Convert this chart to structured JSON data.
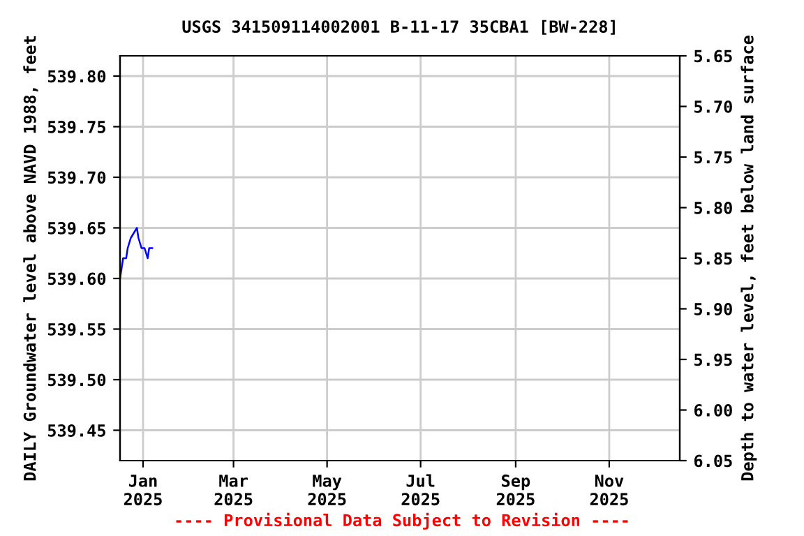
{
  "chart_data": {
    "type": "line",
    "title": "USGS 341509114002001 B-11-17 35CBA1 [BW-228]",
    "ylabel": "DAILY Groundwater level above NAVD 1988, feet",
    "y2label": "Depth to water level, feet below land surface",
    "annotations": [
      "---- Provisional Data Subject to Revision ----"
    ],
    "series": [
      {
        "color": "#0000ff",
        "x": [
          "2024-12-17",
          "2024-12-18",
          "2024-12-19",
          "2024-12-21",
          "2024-12-22",
          "2024-12-24",
          "2024-12-26",
          "2024-12-28",
          "2024-12-29",
          "2024-12-31",
          "2025-01-02",
          "2025-01-04",
          "2025-01-05",
          "2025-01-07"
        ],
        "values": [
          539.6,
          539.61,
          539.62,
          539.62,
          539.63,
          539.64,
          539.645,
          539.65,
          539.64,
          539.63,
          539.63,
          539.62,
          539.63,
          539.63
        ]
      }
    ],
    "xlim": [
      "2024-12-17",
      "2025-12-17"
    ],
    "xticks": [
      {
        "value": "2025-01-01",
        "label": "Jan\n2025"
      },
      {
        "value": "2025-03-01",
        "label": "Mar\n2025"
      },
      {
        "value": "2025-05-01",
        "label": "May\n2025"
      },
      {
        "value": "2025-07-01",
        "label": "Jul\n2025"
      },
      {
        "value": "2025-09-01",
        "label": "Sep\n2025"
      },
      {
        "value": "2025-11-01",
        "label": "Nov\n2025"
      }
    ],
    "ylim": [
      539.42,
      539.82
    ],
    "yticks": [
      {
        "value": 539.45,
        "label": "539.45"
      },
      {
        "value": 539.5,
        "label": "539.50"
      },
      {
        "value": 539.55,
        "label": "539.55"
      },
      {
        "value": 539.6,
        "label": "539.60"
      },
      {
        "value": 539.65,
        "label": "539.65"
      },
      {
        "value": 539.7,
        "label": "539.70"
      },
      {
        "value": 539.75,
        "label": "539.75"
      },
      {
        "value": 539.8,
        "label": "539.80"
      }
    ],
    "y2lim": [
      6.05,
      5.65
    ],
    "y2ticks": [
      {
        "value": 5.65,
        "label": "5.65"
      },
      {
        "value": 5.7,
        "label": "5.70"
      },
      {
        "value": 5.75,
        "label": "5.75"
      },
      {
        "value": 5.8,
        "label": "5.80"
      },
      {
        "value": 5.85,
        "label": "5.85"
      },
      {
        "value": 5.9,
        "label": "5.90"
      },
      {
        "value": 5.95,
        "label": "5.95"
      },
      {
        "value": 6.0,
        "label": "6.00"
      },
      {
        "value": 6.05,
        "label": "6.05"
      }
    ],
    "grid": true,
    "legend": false
  }
}
